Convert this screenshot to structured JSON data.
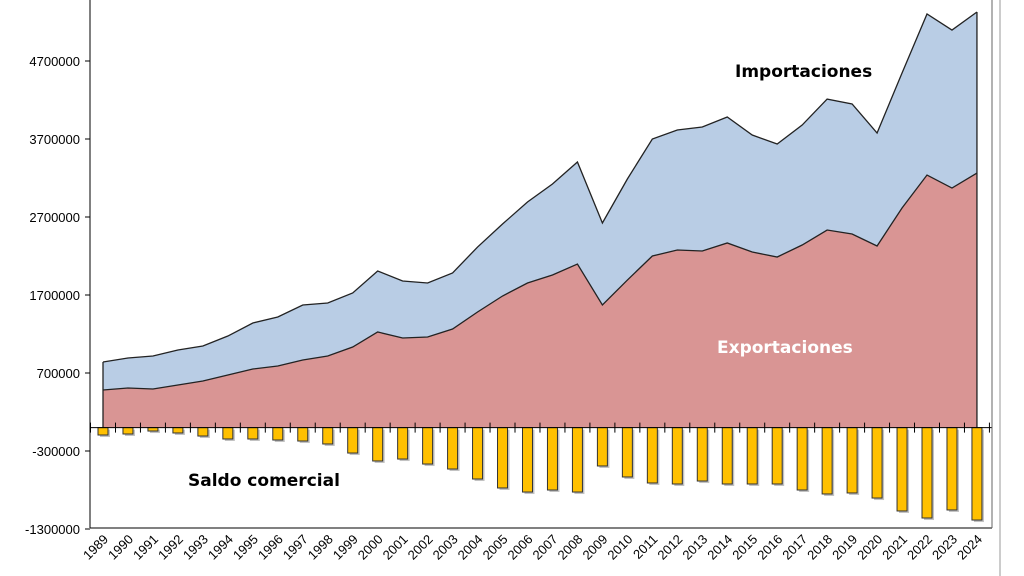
{
  "chart_data": {
    "type": "area",
    "title": "",
    "xlabel": "",
    "ylabel": "",
    "ylim": [
      -1300000,
      5400000
    ],
    "yticks": [
      -1300000,
      -300000,
      700000,
      1700000,
      2700000,
      3700000,
      4700000
    ],
    "grid": false,
    "x": [
      1989,
      1990,
      1991,
      1992,
      1993,
      1994,
      1995,
      1996,
      1997,
      1998,
      1999,
      2000,
      2001,
      2002,
      2003,
      2004,
      2005,
      2006,
      2007,
      2008,
      2009,
      2010,
      2011,
      2012,
      2013,
      2014,
      2015,
      2016,
      2017,
      2018,
      2019,
      2020,
      2021,
      2022,
      2023,
      2024
    ],
    "series": [
      {
        "name": "Exportaciones",
        "kind": "area",
        "color": "#d99594",
        "values": [
          482000,
          508000,
          495000,
          546000,
          597000,
          674000,
          751000,
          790000,
          867000,
          918000,
          1033000,
          1226000,
          1149000,
          1162000,
          1264000,
          1482000,
          1687000,
          1854000,
          1956000,
          2097000,
          1572000,
          1892000,
          2200000,
          2277000,
          2264000,
          2367000,
          2251000,
          2187000,
          2341000,
          2533000,
          2482000,
          2328000,
          2815000,
          3238000,
          3071000,
          3264000
        ]
      },
      {
        "name": "Importaciones",
        "kind": "area",
        "color": "#b9cde5",
        "values": [
          841000,
          892000,
          918000,
          995000,
          1046000,
          1174000,
          1341000,
          1418000,
          1572000,
          1597000,
          1726000,
          2008000,
          1879000,
          1854000,
          1982000,
          2315000,
          2610000,
          2892000,
          3123000,
          3405000,
          2623000,
          3187000,
          3700000,
          3815000,
          3854000,
          3982000,
          3751000,
          3636000,
          3879000,
          4212000,
          4149000,
          3777000,
          4546000,
          5303000,
          5097000,
          5328000
        ]
      },
      {
        "name": "Saldo comercial",
        "kind": "bar",
        "color": "#ffc000",
        "values": [
          -95000,
          -82000,
          -44000,
          -69000,
          -108000,
          -146000,
          -146000,
          -159000,
          -172000,
          -210000,
          -326000,
          -428000,
          -403000,
          -467000,
          -531000,
          -659000,
          -774000,
          -826000,
          -800000,
          -826000,
          -492000,
          -633000,
          -710000,
          -723000,
          -685000,
          -723000,
          -723000,
          -723000,
          -800000,
          -851000,
          -838000,
          -903000,
          -1069000,
          -1159000,
          -1056000,
          -1185000
        ]
      }
    ],
    "annotations": {
      "imports": "Importaciones",
      "exports": "Exportaciones",
      "balance": "Saldo comercial"
    }
  }
}
